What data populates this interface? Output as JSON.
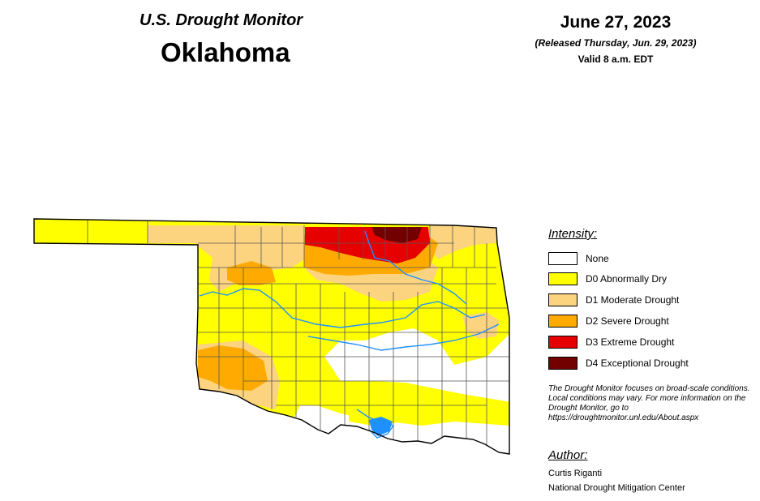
{
  "header": {
    "subtitle": "U.S. Drought Monitor",
    "state": "Oklahoma",
    "date": "June 27, 2023",
    "released": "(Released Thursday, Jun. 29, 2023)",
    "valid": "Valid 8 a.m. EDT"
  },
  "legend": {
    "heading": "Intensity:",
    "items": [
      {
        "label": "None",
        "color": "#ffffff"
      },
      {
        "label": "D0 Abnormally Dry",
        "color": "#ffff00"
      },
      {
        "label": "D1 Moderate Drought",
        "color": "#fcd37f"
      },
      {
        "label": "D2 Severe Drought",
        "color": "#ffaa00"
      },
      {
        "label": "D3 Extreme Drought",
        "color": "#e60000"
      },
      {
        "label": "D4 Exceptional Drought",
        "color": "#730000"
      }
    ]
  },
  "disclaimer": "The Drought Monitor focuses on broad-scale conditions. Local conditions may vary. For more information on the Drought Monitor, go to https://droughtmonitor.unl.edu/About.aspx",
  "author": {
    "heading": "Author:",
    "name": "Curtis Riganti",
    "org": "National Drought Mitigation Center"
  },
  "map_colors": {
    "water": "#1e90ff",
    "county_lines": "#555555",
    "state_outline": "#000000"
  }
}
